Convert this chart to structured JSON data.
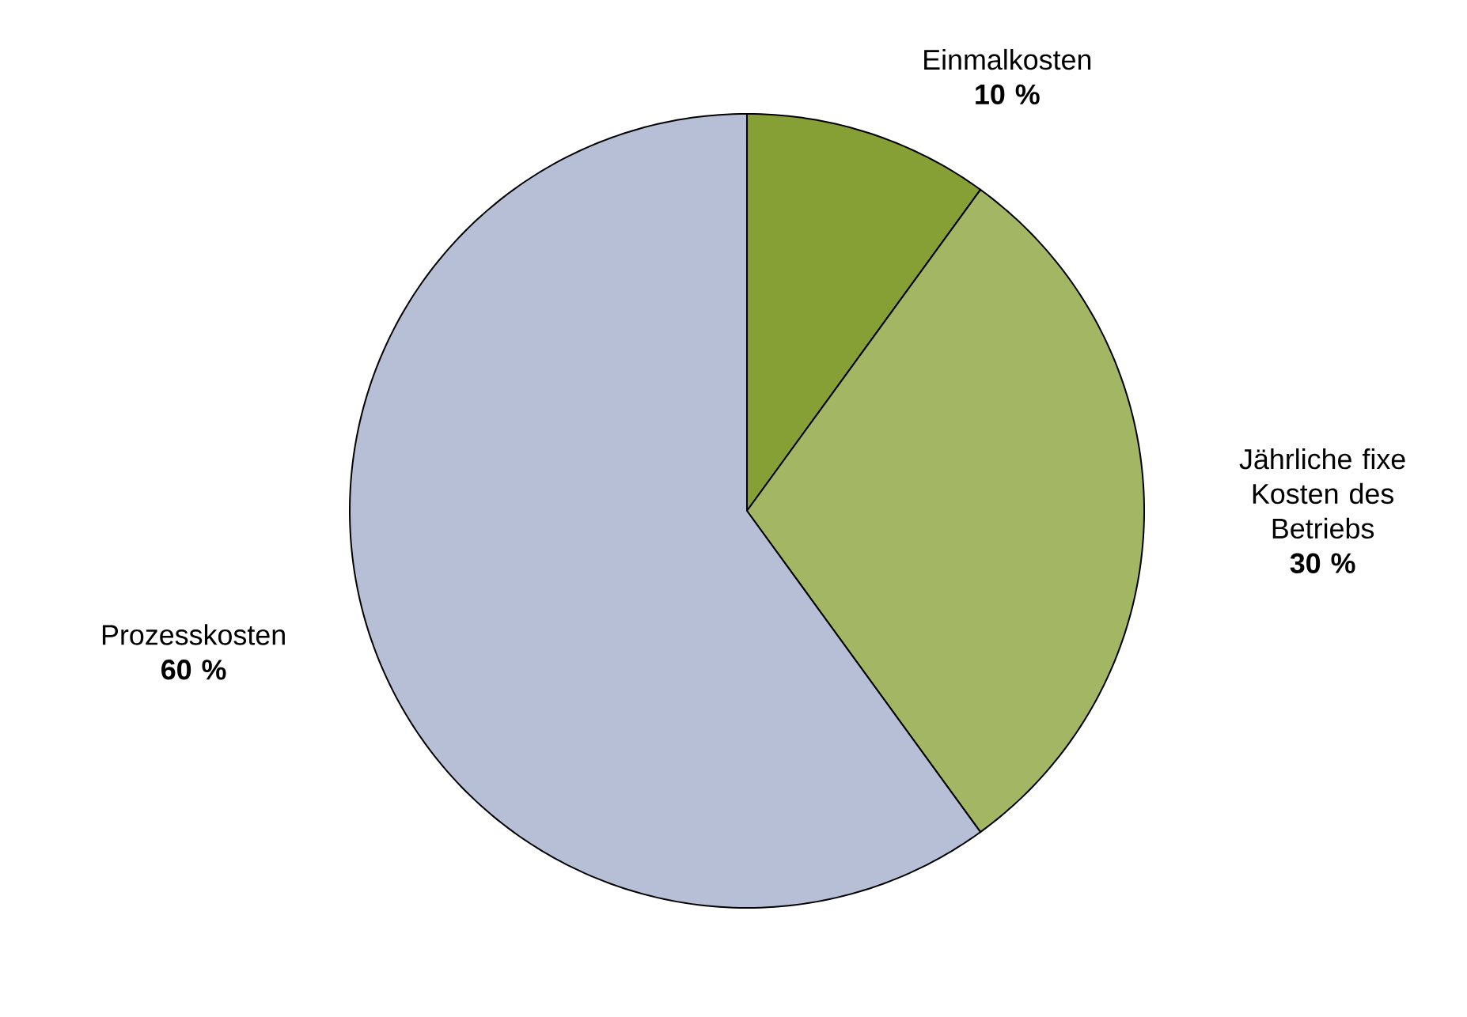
{
  "chart_data": {
    "type": "pie",
    "categories": [
      "Einmalkosten",
      "Jährliche fixe Kosten des Betriebs",
      "Prozesskosten"
    ],
    "values": [
      10,
      30,
      60
    ],
    "value_labels": [
      "10 %",
      "30 %",
      "60 %"
    ],
    "colors": [
      "#86a036",
      "#a2b663",
      "#b7bfd6"
    ]
  }
}
